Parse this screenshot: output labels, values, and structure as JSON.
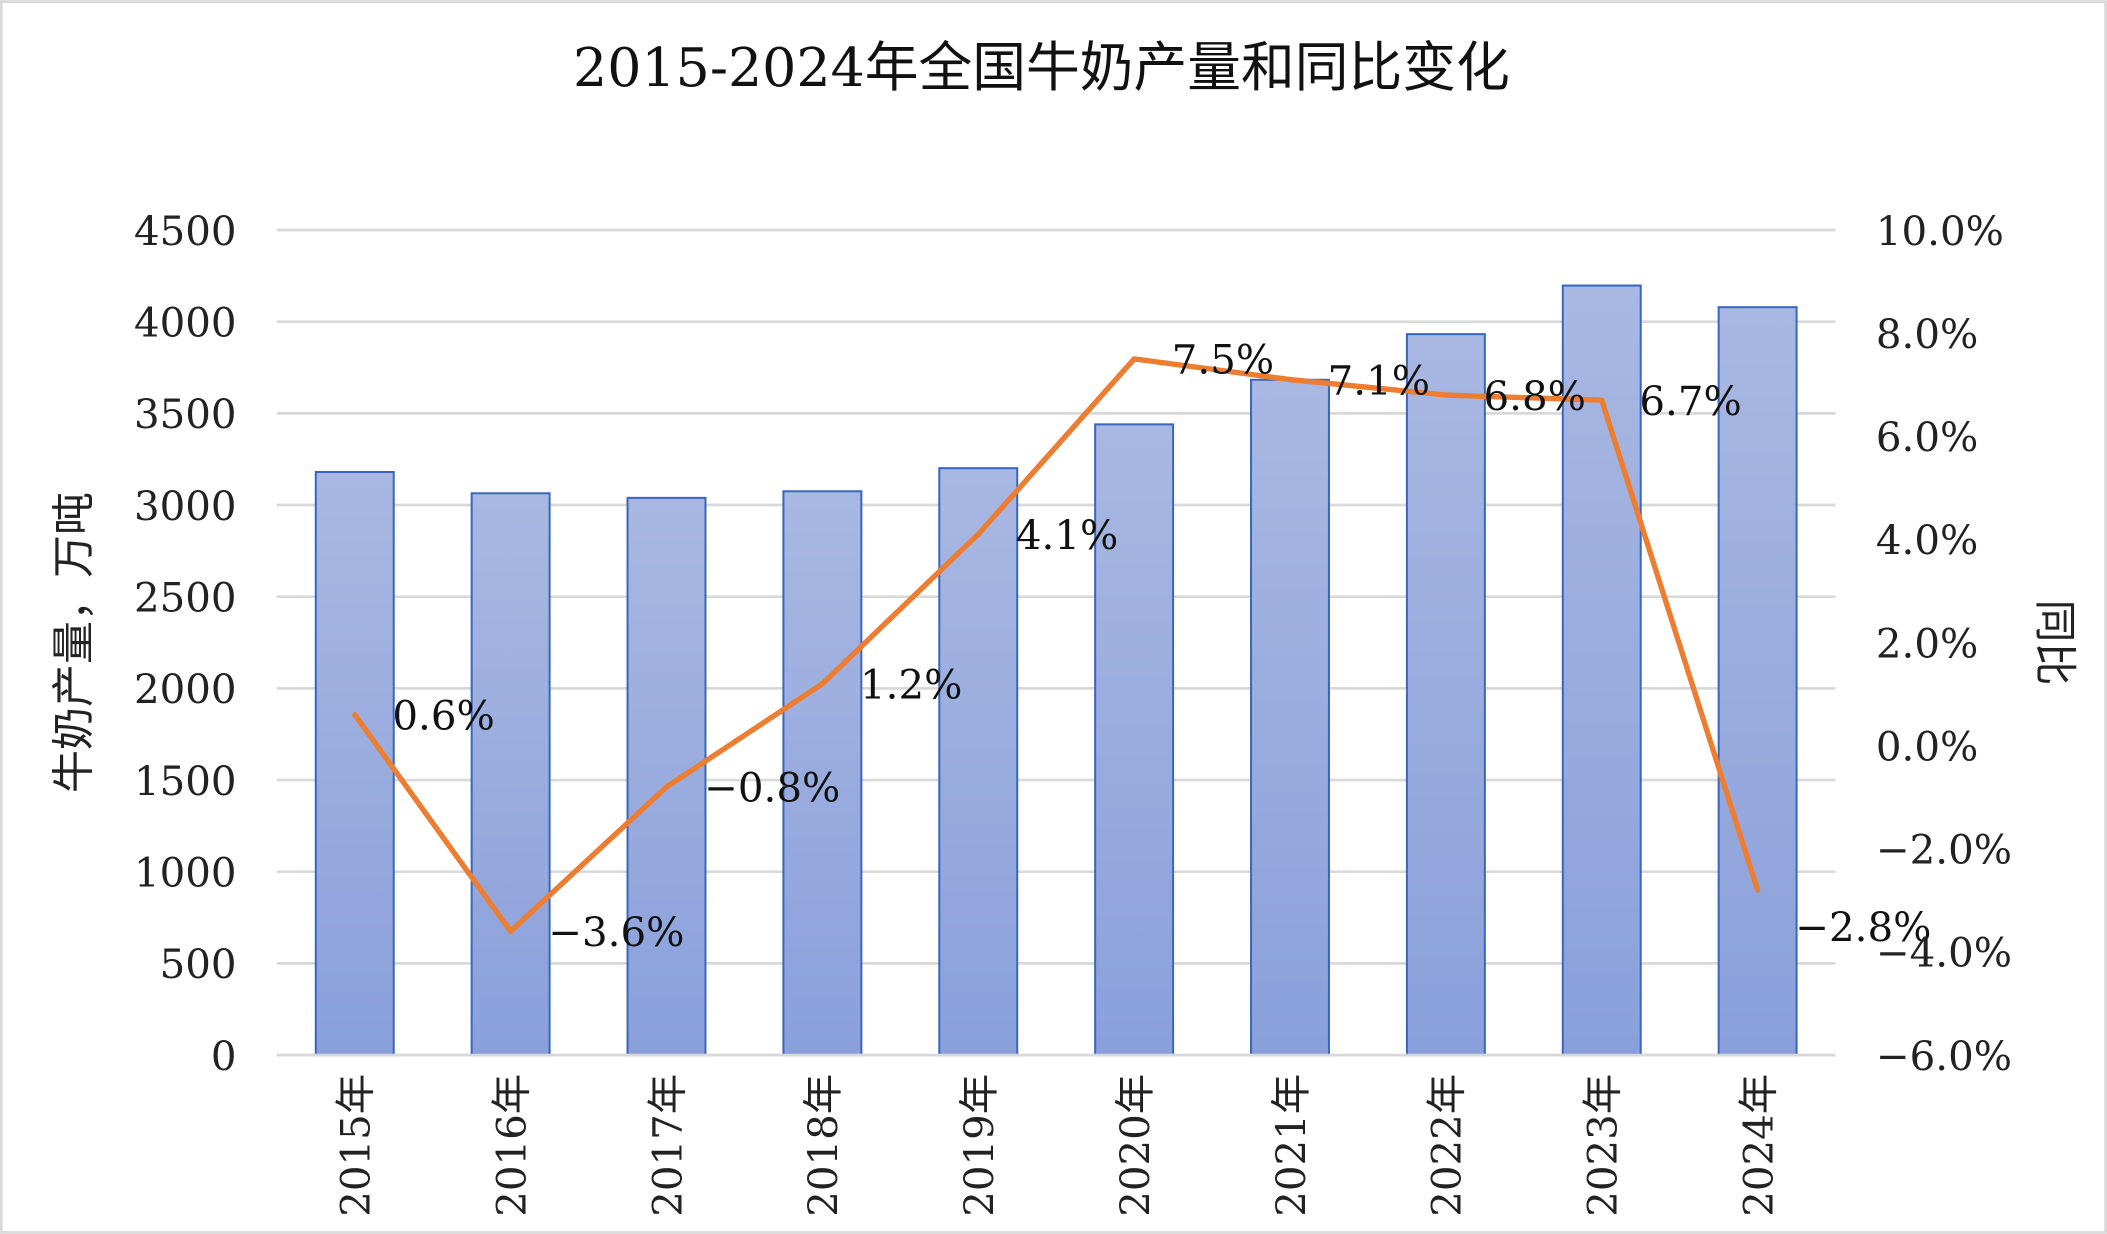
{
  "chart_data": {
    "type": "bar+line",
    "title": "2015-2024年全国牛奶产量和同比变化",
    "categories": [
      "2015年",
      "2016年",
      "2017年",
      "2018年",
      "2019年",
      "2020年",
      "2021年",
      "2022年",
      "2023年",
      "2024年"
    ],
    "series": [
      {
        "type": "bar",
        "axis": "left",
        "values": [
          3180,
          3064,
          3039,
          3075,
          3201,
          3440,
          3683,
          3932,
          4197,
          4079
        ]
      },
      {
        "type": "line",
        "axis": "right",
        "values": [
          0.6,
          -3.6,
          -0.8,
          1.2,
          4.1,
          7.5,
          7.1,
          6.8,
          6.7,
          -2.8
        ],
        "labels": [
          "0.6%",
          "-3.6%",
          "-0.8%",
          "1.2%",
          "4.1%",
          "7.5%",
          "7.1%",
          "6.8%",
          "6.7%",
          "-2.8%"
        ]
      }
    ],
    "ylabel": "牛奶产量，万吨",
    "y2label": "同比",
    "ylim": [
      0,
      4500
    ],
    "y2lim": [
      -6,
      10
    ],
    "yticks": [
      "0",
      "500",
      "1000",
      "1500",
      "2000",
      "2500",
      "3000",
      "3500",
      "4000",
      "4500"
    ],
    "y2ticks": [
      "-6.0%",
      "-4.0%",
      "-2.0%",
      "0.0%",
      "2.0%",
      "4.0%",
      "6.0%",
      "8.0%",
      "10.0%"
    ],
    "grid": true,
    "colors": {
      "bar_top": "#a9b8e2",
      "bar_bottom": "#8aa0db",
      "bar_edge": "#3a66c0",
      "line": "#ed7d31",
      "grid": "#d9d9d9"
    }
  }
}
